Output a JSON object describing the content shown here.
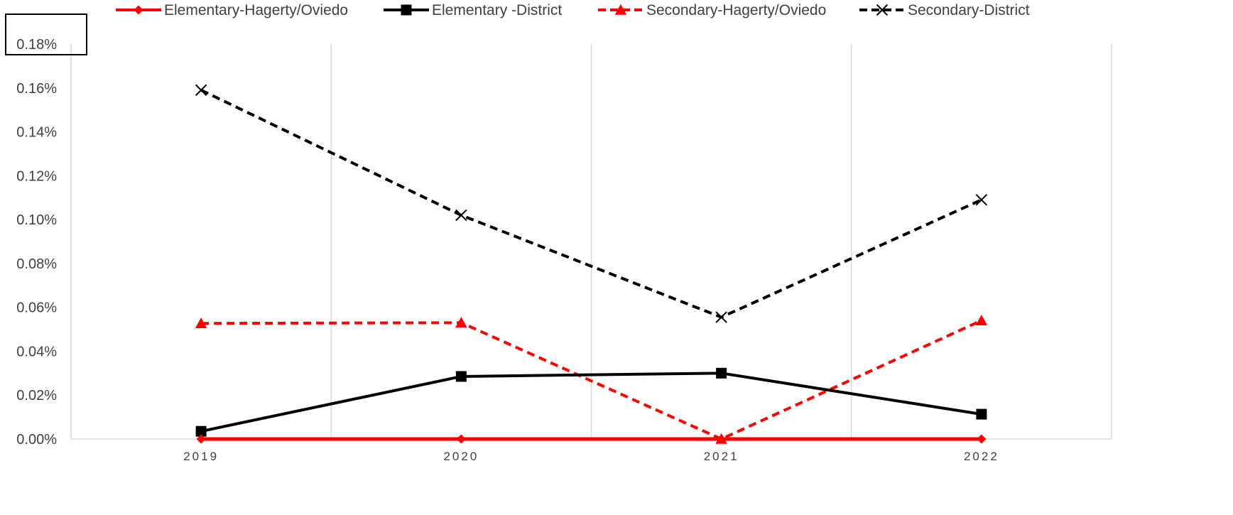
{
  "chart_data": {
    "type": "line",
    "categories": [
      "2019",
      "2020",
      "2021",
      "2022"
    ],
    "ylim": [
      0,
      0.18
    ],
    "yticks": [
      0.0,
      0.02,
      0.04,
      0.06,
      0.08,
      0.1,
      0.12,
      0.14,
      0.16,
      0.18
    ],
    "ytick_labels": [
      "0.00%",
      "0.02%",
      "0.04%",
      "0.06%",
      "0.08%",
      "0.10%",
      "0.12%",
      "0.14%",
      "0.16%",
      "0.18%"
    ],
    "grid": "vertical",
    "legend_position": "top",
    "series": [
      {
        "name": "Elementary-Hagerty/Oviedo",
        "values": [
          0.0,
          0.0,
          0.0,
          0.0
        ],
        "color": "#ff0000",
        "dash": "solid",
        "marker": "diamond"
      },
      {
        "name": "Elementary -District",
        "values": [
          0.0035,
          0.0285,
          0.03,
          0.0113
        ],
        "color": "#000000",
        "dash": "solid",
        "marker": "square"
      },
      {
        "name": "Secondary-Hagerty/Oviedo",
        "values": [
          0.0527,
          0.053,
          0.0,
          0.054
        ],
        "color": "#ff0000",
        "dash": "dashed",
        "marker": "triangle"
      },
      {
        "name": "Secondary-District",
        "values": [
          0.159,
          0.102,
          0.0555,
          0.109
        ],
        "color": "#000000",
        "dash": "dashed",
        "marker": "x"
      }
    ]
  }
}
